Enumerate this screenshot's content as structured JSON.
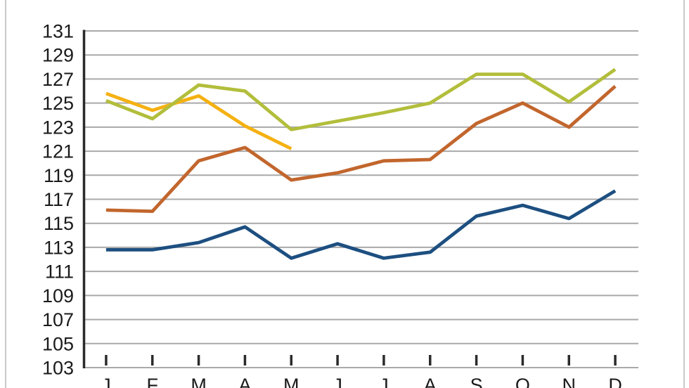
{
  "page": {
    "background": "#ffffff",
    "border_color": "#c9c9c9"
  },
  "style": {
    "grid_color": "#a9a9a9",
    "axis_color": "#2b2b2b",
    "text_color": "#1a1a1a"
  },
  "chart_data": {
    "type": "line",
    "title": "",
    "xlabel": "",
    "ylabel": "",
    "categories": [
      "J",
      "F",
      "M",
      "A",
      "M",
      "J",
      "J",
      "A",
      "S",
      "O",
      "N",
      "D"
    ],
    "series": [
      {
        "name": "yellow-line",
        "color": "#f5b112",
        "values": [
          125.8,
          124.4,
          125.6,
          123.1,
          121.2,
          null,
          null,
          null,
          null,
          null,
          null,
          null
        ]
      },
      {
        "name": "green-line",
        "color": "#b2be3b",
        "values": [
          125.2,
          123.7,
          126.5,
          126.0,
          122.8,
          123.5,
          124.2,
          125.0,
          127.4,
          127.4,
          125.1,
          127.8
        ]
      },
      {
        "name": "orange-line",
        "color": "#c2662d",
        "values": [
          116.1,
          116.0,
          120.2,
          121.3,
          118.6,
          119.2,
          120.2,
          120.3,
          123.3,
          125.0,
          123.0,
          126.4
        ]
      },
      {
        "name": "blue-line",
        "color": "#1d4f80",
        "values": [
          112.8,
          112.8,
          113.4,
          114.7,
          112.1,
          113.3,
          112.1,
          112.6,
          115.6,
          116.5,
          115.4,
          117.7
        ]
      }
    ],
    "ylim": [
      103,
      131
    ],
    "ytick_step": 2,
    "ytick_labels": [
      "103",
      "105",
      "107",
      "109",
      "111",
      "113",
      "115",
      "117",
      "119",
      "121",
      "123",
      "125",
      "127",
      "129",
      "131"
    ],
    "grid": true,
    "legend": "none"
  }
}
